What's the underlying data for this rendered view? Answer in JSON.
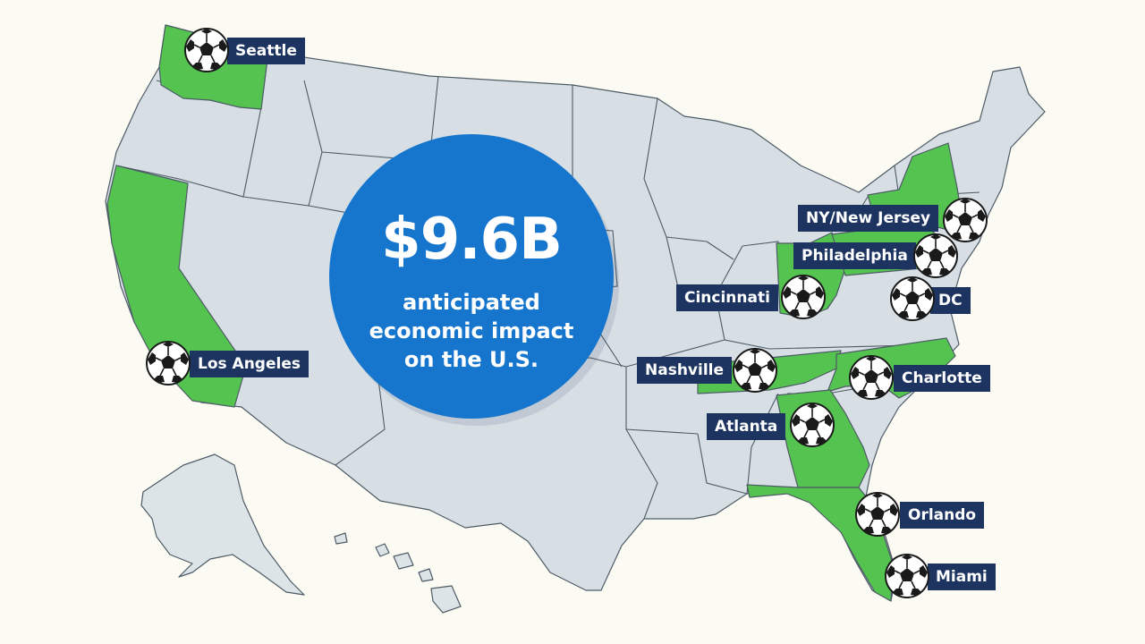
{
  "headline": {
    "amount": "$9.6B",
    "caption_lines": [
      "anticipated",
      "economic impact",
      "on the U.S."
    ]
  },
  "colors": {
    "background": "#fcfbf3",
    "state_default": "#d7dfe5",
    "state_host": "#55c34f",
    "state_border": "#4d5b66",
    "label_bg": "#1d3461",
    "label_text": "#ffffff",
    "circle": "#1675cc"
  },
  "host_states": [
    "Washington",
    "California",
    "Georgia",
    "Florida",
    "Tennessee",
    "North Carolina",
    "Ohio",
    "New York",
    "Pennsylvania"
  ],
  "cities": [
    {
      "name": "Seattle",
      "icon": "soccer-ball-icon"
    },
    {
      "name": "Los Angeles",
      "icon": "soccer-ball-icon"
    },
    {
      "name": "NY/New Jersey",
      "icon": "soccer-ball-icon"
    },
    {
      "name": "Philadelphia",
      "icon": "soccer-ball-icon"
    },
    {
      "name": "Cincinnati",
      "icon": "soccer-ball-icon"
    },
    {
      "name": "DC",
      "icon": "soccer-ball-icon"
    },
    {
      "name": "Nashville",
      "icon": "soccer-ball-icon"
    },
    {
      "name": "Charlotte",
      "icon": "soccer-ball-icon"
    },
    {
      "name": "Atlanta",
      "icon": "soccer-ball-icon"
    },
    {
      "name": "Orlando",
      "icon": "soccer-ball-icon"
    },
    {
      "name": "Miami",
      "icon": "soccer-ball-icon"
    }
  ]
}
